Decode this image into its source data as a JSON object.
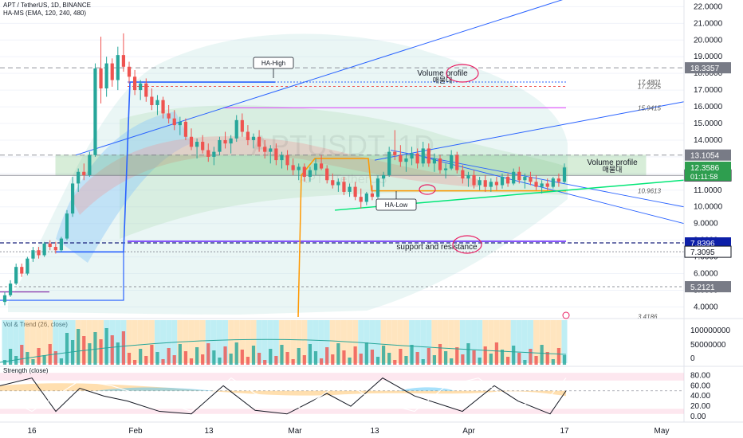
{
  "header": {
    "symbol_line": "APT / TetherUS, 1D, BINANCE",
    "indicator_line": "HA-MS (EMA, 120, 240, 480)",
    "watermark": "APTUSDT, 1D",
    "watermark_sub": "APT / TetherUS"
  },
  "panes": {
    "volume_title": "Vol & Trend (26, close)",
    "strength_title": "Strength (close)"
  },
  "colors": {
    "up": "#26a69a",
    "down": "#ef5350",
    "blue": "#2962ff",
    "orange": "#ff9800",
    "green_line": "#00e676",
    "magenta": "#e91e63",
    "zone": "#4caf50"
  },
  "chart_data": {
    "type": "candlestick",
    "x": {
      "ticks": [
        "16",
        "Feb",
        "13",
        "Mar",
        "13",
        "Apr",
        "17",
        "May"
      ]
    },
    "price_axis": {
      "ticks": [
        "22.0000",
        "21.0000",
        "20.0000",
        "19.0000",
        "18.0000",
        "17.0000",
        "16.0000",
        "15.0000",
        "14.0000",
        "13.0000",
        "12.0000",
        "11.0000",
        "10.0000",
        "9.0000",
        "8.0000",
        "7.0000",
        "6.0000",
        "5.0000",
        "4.0000"
      ],
      "ylim": [
        3.4,
        22.4
      ]
    },
    "current_price": {
      "price": "12.3586",
      "countdown": "01:11:58"
    },
    "price_levels": [
      {
        "label": "18.3357",
        "style": "gray"
      },
      {
        "label": "17.4801",
        "style": "text"
      },
      {
        "label": "17.2225",
        "style": "text"
      },
      {
        "label": "15.9415",
        "style": "text"
      },
      {
        "label": "13.1054",
        "style": "gray"
      },
      {
        "label": "11.8860",
        "style": "outline"
      },
      {
        "label": "10.9613",
        "style": "text"
      },
      {
        "label": "7.8396",
        "style": "blue"
      },
      {
        "label": "7.3095",
        "style": "outline"
      },
      {
        "label": "5.2121",
        "style": "gray"
      },
      {
        "label": "3.4186",
        "style": "text"
      }
    ],
    "annotations": {
      "ha_high": "HA-High",
      "ha_low": "HA-Low",
      "volume_profile_top": "Volume profile",
      "volume_profile_top_kr": "매물대",
      "volume_profile_right": "Volume profile",
      "volume_profile_right_kr": "매물대",
      "support_resistance": "support and resistance"
    },
    "candles": [
      [
        4.3,
        4.9,
        4.1,
        4.7
      ],
      [
        4.7,
        5.6,
        4.6,
        5.4
      ],
      [
        5.4,
        6.6,
        5.3,
        6.4
      ],
      [
        6.4,
        6.6,
        5.8,
        6.0
      ],
      [
        6.0,
        7.0,
        5.9,
        6.9
      ],
      [
        6.9,
        7.6,
        6.7,
        7.4
      ],
      [
        7.4,
        7.6,
        6.9,
        7.1
      ],
      [
        7.1,
        7.9,
        7.0,
        7.8
      ],
      [
        7.8,
        8.0,
        7.4,
        7.6
      ],
      [
        7.6,
        7.9,
        7.2,
        7.4
      ],
      [
        7.4,
        8.2,
        7.3,
        8.1
      ],
      [
        8.1,
        9.8,
        8.0,
        9.6
      ],
      [
        9.6,
        11.8,
        9.4,
        11.4
      ],
      [
        11.4,
        12.3,
        10.9,
        12.1
      ],
      [
        12.1,
        12.6,
        11.6,
        11.9
      ],
      [
        11.9,
        13.3,
        11.8,
        13.1
      ],
      [
        13.1,
        18.6,
        13.0,
        18.3
      ],
      [
        18.3,
        20.2,
        16.2,
        17.1
      ],
      [
        17.1,
        19.0,
        16.6,
        18.6
      ],
      [
        18.6,
        18.9,
        17.2,
        17.6
      ],
      [
        17.6,
        19.6,
        17.0,
        19.1
      ],
      [
        19.1,
        20.4,
        18.1,
        18.4
      ],
      [
        18.4,
        18.7,
        17.4,
        17.8
      ],
      [
        17.8,
        18.2,
        16.7,
        17.0
      ],
      [
        17.0,
        17.6,
        16.4,
        17.4
      ],
      [
        17.4,
        17.7,
        16.3,
        16.6
      ],
      [
        16.6,
        17.1,
        15.8,
        16.1
      ],
      [
        16.1,
        16.7,
        15.5,
        16.4
      ],
      [
        16.4,
        16.6,
        15.3,
        15.6
      ],
      [
        15.6,
        16.1,
        15.0,
        15.3
      ],
      [
        15.3,
        15.8,
        14.6,
        14.9
      ],
      [
        14.9,
        15.4,
        14.3,
        15.1
      ],
      [
        15.1,
        15.3,
        14.0,
        14.2
      ],
      [
        14.2,
        14.7,
        13.4,
        13.6
      ],
      [
        13.6,
        14.1,
        12.9,
        13.9
      ],
      [
        13.9,
        14.3,
        13.2,
        13.4
      ],
      [
        13.4,
        13.8,
        12.7,
        13.0
      ],
      [
        13.0,
        13.6,
        12.5,
        13.3
      ],
      [
        13.3,
        14.2,
        13.1,
        14.0
      ],
      [
        14.0,
        14.5,
        13.5,
        13.8
      ],
      [
        13.8,
        14.3,
        13.2,
        14.1
      ],
      [
        14.1,
        15.5,
        13.9,
        15.2
      ],
      [
        15.2,
        15.6,
        14.2,
        14.5
      ],
      [
        14.5,
        14.9,
        13.7,
        14.0
      ],
      [
        14.0,
        14.4,
        13.5,
        14.2
      ],
      [
        14.2,
        14.6,
        13.3,
        13.6
      ],
      [
        13.6,
        14.0,
        12.9,
        13.3
      ],
      [
        13.3,
        13.7,
        12.6,
        13.5
      ],
      [
        13.5,
        13.8,
        12.5,
        12.8
      ],
      [
        12.8,
        13.3,
        12.3,
        13.1
      ],
      [
        13.1,
        13.4,
        12.2,
        12.5
      ],
      [
        12.5,
        12.9,
        11.9,
        12.2
      ],
      [
        12.2,
        12.6,
        11.6,
        12.4
      ],
      [
        12.4,
        12.6,
        11.5,
        11.8
      ],
      [
        11.8,
        12.4,
        11.5,
        12.2
      ],
      [
        12.2,
        12.9,
        11.9,
        12.6
      ],
      [
        12.6,
        13.1,
        12.2,
        12.3
      ],
      [
        12.3,
        12.5,
        11.4,
        11.6
      ],
      [
        11.6,
        12.0,
        11.1,
        11.3
      ],
      [
        11.3,
        11.7,
        10.9,
        11.5
      ],
      [
        11.5,
        11.8,
        10.7,
        10.9
      ],
      [
        10.9,
        11.4,
        10.6,
        11.2
      ],
      [
        11.2,
        11.5,
        10.4,
        10.6
      ],
      [
        10.6,
        11.1,
        9.9,
        10.3
      ],
      [
        10.3,
        10.9,
        10.1,
        10.8
      ],
      [
        10.8,
        11.3,
        10.4,
        10.6
      ],
      [
        10.6,
        11.9,
        10.5,
        11.7
      ],
      [
        11.7,
        12.1,
        11.2,
        11.9
      ],
      [
        11.9,
        13.6,
        11.8,
        13.3
      ],
      [
        13.3,
        14.6,
        12.8,
        13.1
      ],
      [
        13.1,
        13.7,
        12.4,
        12.7
      ],
      [
        12.7,
        13.2,
        12.1,
        12.9
      ],
      [
        12.9,
        13.6,
        12.5,
        13.2
      ],
      [
        13.2,
        13.5,
        12.3,
        12.6
      ],
      [
        12.6,
        13.9,
        12.4,
        13.5
      ],
      [
        13.5,
        13.8,
        12.4,
        12.6
      ],
      [
        12.6,
        13.2,
        12.1,
        12.9
      ],
      [
        12.9,
        13.1,
        12.0,
        12.2
      ],
      [
        12.2,
        12.6,
        11.7,
        12.3
      ],
      [
        12.3,
        13.4,
        12.2,
        13.1
      ],
      [
        13.1,
        13.3,
        12.0,
        12.2
      ],
      [
        12.2,
        12.5,
        11.4,
        11.7
      ],
      [
        11.7,
        12.1,
        11.2,
        11.9
      ],
      [
        11.9,
        12.2,
        11.1,
        11.3
      ],
      [
        11.3,
        11.8,
        11.0,
        11.6
      ],
      [
        11.6,
        11.9,
        10.9,
        11.2
      ],
      [
        11.2,
        11.7,
        10.9,
        11.5
      ],
      [
        11.5,
        11.8,
        11.0,
        11.3
      ],
      [
        11.3,
        12.0,
        11.1,
        11.8
      ],
      [
        11.8,
        12.0,
        11.2,
        11.4
      ],
      [
        11.4,
        12.3,
        11.3,
        12.1
      ],
      [
        12.1,
        12.4,
        11.4,
        11.6
      ],
      [
        11.6,
        12.0,
        11.1,
        11.8
      ],
      [
        11.8,
        12.1,
        11.3,
        11.5
      ],
      [
        11.5,
        11.9,
        11.0,
        11.2
      ],
      [
        11.2,
        11.6,
        10.8,
        11.4
      ],
      [
        11.4,
        11.7,
        11.0,
        11.2
      ],
      [
        11.2,
        11.8,
        11.1,
        11.7
      ],
      [
        11.7,
        12.0,
        11.2,
        11.5
      ],
      [
        11.5,
        12.6,
        11.4,
        12.36
      ]
    ],
    "volume_axis": {
      "ticks": [
        "100000000",
        "50000000",
        "0"
      ]
    },
    "strength_axis": {
      "ticks": [
        "80.00",
        "60.00",
        "40.00",
        "20.00",
        "0.00"
      ]
    }
  }
}
